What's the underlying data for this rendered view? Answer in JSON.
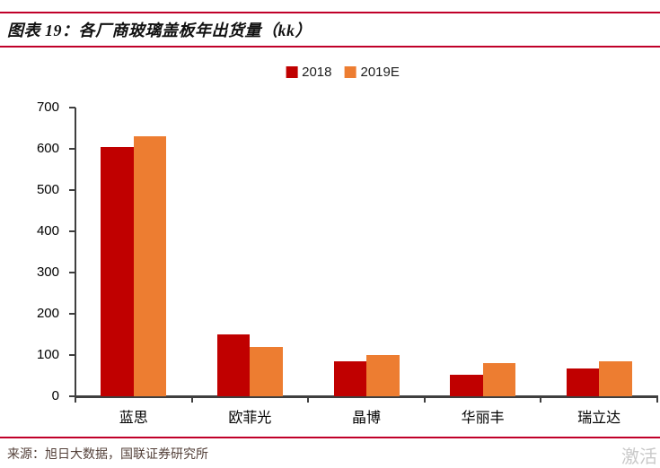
{
  "header": {
    "title": "图表 19：各厂商玻璃盖板年出货量（kk）"
  },
  "chart_data": {
    "type": "bar",
    "title": "各厂商玻璃盖板年出货量（kk）",
    "categories": [
      "蓝思",
      "欧菲光",
      "晶博",
      "华丽丰",
      "瑞立达"
    ],
    "series": [
      {
        "name": "2018",
        "color": "#c00000",
        "values": [
          605,
          150,
          85,
          52,
          68
        ]
      },
      {
        "name": "2019E",
        "color": "#ed7d31",
        "values": [
          630,
          120,
          100,
          80,
          85
        ]
      }
    ],
    "xlabel": "",
    "ylabel": "",
    "ylim": [
      0,
      700
    ],
    "yticks": [
      0,
      100,
      200,
      300,
      400,
      500,
      600,
      700
    ],
    "grid": false,
    "legend_position": "top-center"
  },
  "footer": {
    "source": "来源：旭日大数据，国联证券研究所",
    "watermark": "激活"
  },
  "colors": {
    "accent_line": "#c00029",
    "bar_2018": "#c00000",
    "bar_2019e": "#ed7d31",
    "axis": "#3f3f3f",
    "source_text": "#54413a",
    "watermark": "#c9c9c9"
  }
}
